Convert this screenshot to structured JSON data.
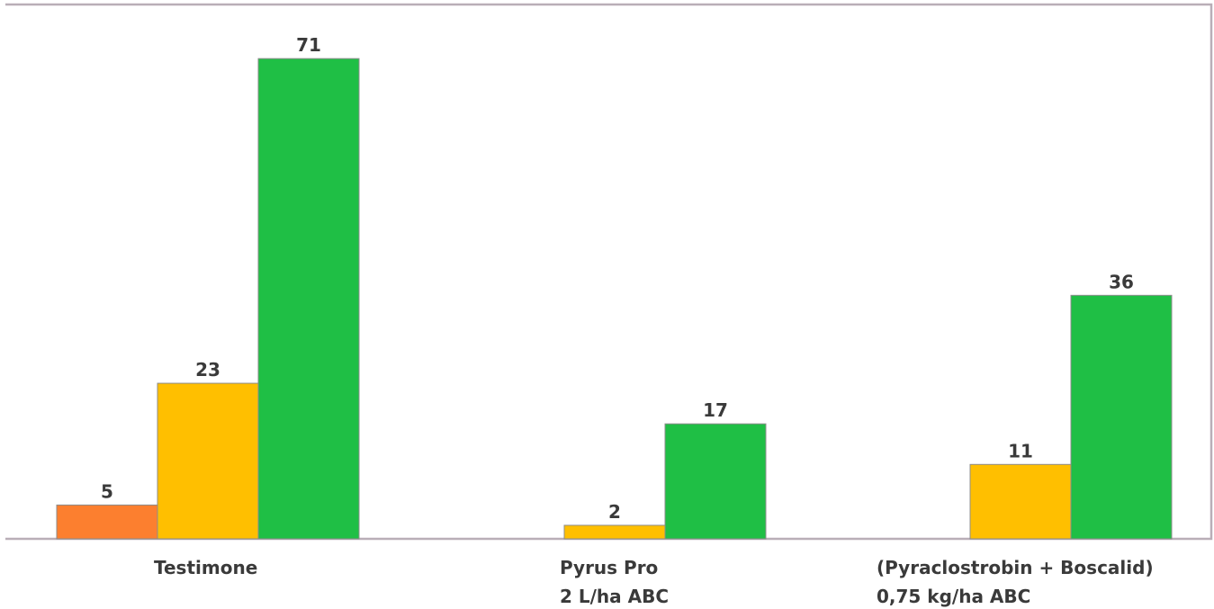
{
  "chart_data": {
    "type": "bar",
    "categories": [
      [
        "Testimone"
      ],
      [
        "Pyrus Pro",
        "2 L/ha ABC"
      ],
      [
        "(Pyraclostrobin + Boscalid)",
        "0,75 kg/ha ABC"
      ]
    ],
    "series": [
      {
        "values": [
          5,
          null,
          null
        ],
        "color": "#fc7f2f"
      },
      {
        "values": [
          23,
          2,
          11
        ],
        "color": "#ffbf00"
      },
      {
        "values": [
          71,
          17,
          36
        ],
        "color": "#1fbf45"
      }
    ],
    "title": "",
    "xlabel": "",
    "ylabel": "",
    "ylim": [
      0,
      79
    ],
    "grid": false,
    "legend": "none",
    "frame_color": "#b9aeb7"
  }
}
